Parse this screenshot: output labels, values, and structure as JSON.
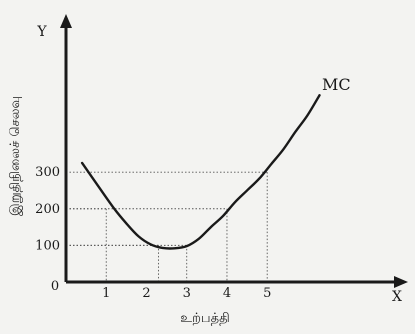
{
  "chart_data": {
    "type": "line",
    "title": "",
    "xlabel": "உற்பத்தி",
    "ylabel": "இறுதிநிலைச் செலவு",
    "x_axis_letter": "X",
    "y_axis_letter": "Y",
    "origin_label": "0",
    "x_ticks": [
      "1",
      "2",
      "3",
      "4",
      "5"
    ],
    "y_ticks": [
      "100",
      "200",
      "300"
    ],
    "xlim": [
      0,
      8.3
    ],
    "ylim": [
      0,
      710
    ],
    "grid": false,
    "series": [
      {
        "name": "MC",
        "x": [
          0.4,
          0.8,
          1.2,
          1.5,
          1.8,
          2.1,
          2.4,
          2.7,
          3.0,
          3.3,
          3.6,
          3.9,
          4.2,
          4.5,
          4.8,
          5.1,
          5.4,
          5.7,
          6.0,
          6.3
        ],
        "y": [
          325,
          262,
          200,
          160,
          125,
          103,
          93,
          92,
          98,
          118,
          150,
          180,
          218,
          250,
          282,
          322,
          362,
          410,
          455,
          510
        ]
      }
    ],
    "reference_lines": [
      {
        "x": 1.0,
        "y": 200
      },
      {
        "x": 2.3,
        "y": 100
      },
      {
        "x": 3.0,
        "y": 100
      },
      {
        "x": 4.0,
        "y": 200
      },
      {
        "x": 5.0,
        "y": 300
      }
    ],
    "colors": {
      "line": "#1a1a1a",
      "guide": "#555555",
      "background": "#f3f3f1"
    }
  }
}
